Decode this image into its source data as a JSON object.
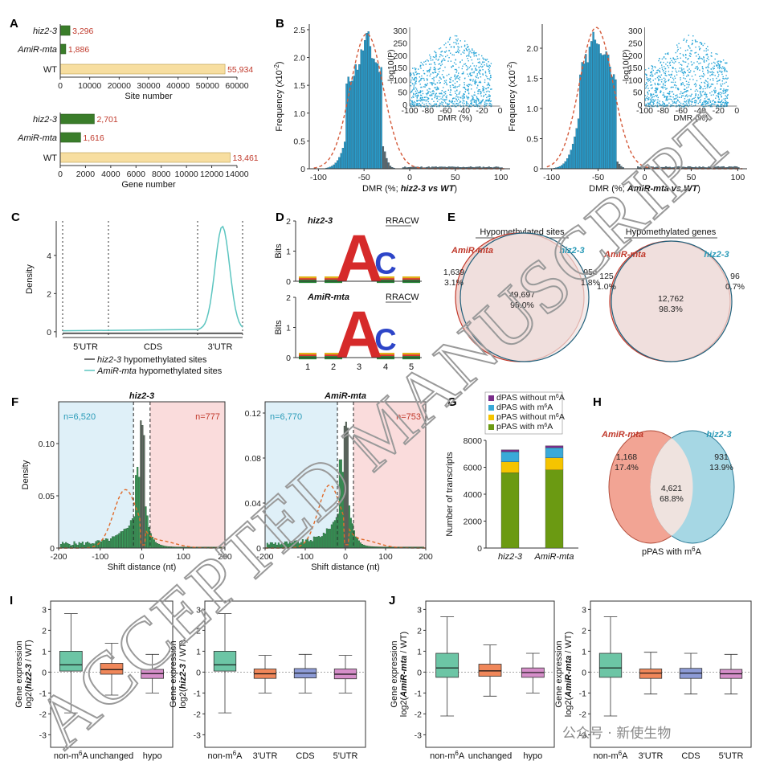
{
  "panels": {
    "A": "A",
    "B": "B",
    "C": "C",
    "D": "D",
    "E": "E",
    "F": "F",
    "G": "G",
    "H": "H",
    "I": "I",
    "J": "J"
  },
  "colors": {
    "green": "#3a7d2a",
    "wt": "#f7dea0",
    "blue": "#2a8fb8",
    "red": "#d45a3a",
    "teal": "#6cc5b0",
    "orange": "#f0875a",
    "lav": "#8d9bd6",
    "pink": "#d58ec9"
  },
  "watermark": {
    "text": "ACCEPTED MANUSCRIPT",
    "source": "公众号 · 新使生物"
  },
  "chart_data": [
    {
      "panel": "A",
      "type": "bar",
      "orientation": "horizontal",
      "categories": [
        "hiz2-3",
        "AmiR-mta",
        "WT"
      ],
      "values": [
        3296,
        1886,
        55934
      ],
      "value_labels": [
        "3,296",
        "1,886",
        "55,934"
      ],
      "xlabel": "Site number",
      "xlim": [
        0,
        60000
      ],
      "xticks": [
        "0",
        "10000",
        "20000",
        "30000",
        "40000",
        "50000",
        "60000"
      ]
    },
    {
      "panel": "A",
      "type": "bar",
      "orientation": "horizontal",
      "categories": [
        "hiz2-3",
        "AmiR-mta",
        "WT"
      ],
      "values": [
        2701,
        1616,
        13461
      ],
      "value_labels": [
        "2,701",
        "1,616",
        "13,461"
      ],
      "xlabel": "Gene number",
      "xlim": [
        0,
        14000
      ],
      "xticks": [
        "0",
        "2000",
        "4000",
        "6000",
        "8000",
        "10000",
        "12000",
        "14000"
      ]
    },
    {
      "panel": "B",
      "type": "bar",
      "subtype": "histogram",
      "xlabel_parts": [
        "DMR (%; ",
        "hiz2-3 vs WT",
        ")"
      ],
      "ylabel": "Frequency (x10",
      "ylabel_sup": "-2",
      "ylabel_end": ")",
      "xlim": [
        -110,
        110
      ],
      "ylim": [
        0,
        2.6
      ],
      "xticks": [
        "-100",
        "-50",
        "0",
        "50",
        "100"
      ],
      "yticks": [
        "0",
        "0.5",
        "1.0",
        "1.5",
        "2.0",
        "2.5"
      ],
      "mode": -47,
      "peak": 2.38,
      "inset": {
        "xlabel": "DMR (%)",
        "ylabel": "-log10(P)",
        "xticks": [
          "-100",
          "-80",
          "-60",
          "-40",
          "-20",
          "0"
        ],
        "yticks": [
          "0",
          "50",
          "100",
          "150",
          "200",
          "250",
          "300"
        ]
      }
    },
    {
      "panel": "B",
      "type": "bar",
      "subtype": "histogram",
      "xlabel_parts": [
        "DMR (%; ",
        "AmiR-mta vs WT",
        ")"
      ],
      "ylabel": "Frequency (x10",
      "ylabel_sup": "-2",
      "ylabel_end": ")",
      "xlim": [
        -110,
        110
      ],
      "ylim": [
        0,
        2.4
      ],
      "xticks": [
        "-100",
        "-50",
        "0",
        "50",
        "100"
      ],
      "yticks": [
        "0",
        "0.5",
        "1.0",
        "1.5",
        "2.0"
      ],
      "mode": -52,
      "peak": 2.3,
      "inset": {
        "xlabel": "DMR (%)",
        "ylabel": "-log10(P)",
        "xticks": [
          "-100",
          "-80",
          "-60",
          "-40",
          "-20",
          "0"
        ],
        "yticks": [
          "0",
          "50",
          "100",
          "150",
          "200",
          "250",
          "300"
        ]
      }
    },
    {
      "panel": "C",
      "type": "line",
      "ylabel": "Density",
      "yticks": [
        "0",
        "2",
        "4"
      ],
      "ylim": [
        -0.3,
        5.8
      ],
      "regions": [
        "5'UTR",
        "CDS",
        "3'UTR"
      ],
      "series": [
        {
          "name_it": "hiz2-3",
          "name_rest": " hypomethylated sites",
          "color": "#444444"
        },
        {
          "name_it": "AmiR-mta",
          "name_rest": " hypomethylated sites",
          "color": "#5cc5c0"
        }
      ],
      "peak": 5.5
    },
    {
      "panel": "D",
      "type": "table",
      "logos": [
        {
          "name": "hiz2-3",
          "motif": "RRACW"
        },
        {
          "name": "AmiR-mta",
          "motif": "RRACW"
        }
      ],
      "ylabel": "Bits",
      "yticks": [
        "0",
        "1",
        "2"
      ],
      "positions": [
        "1",
        "2",
        "3",
        "4",
        "5"
      ]
    },
    {
      "panel": "E",
      "type": "table",
      "venns": [
        {
          "title": "Hypomethylated sites",
          "left": "AmiR-mta",
          "right": "hiz2-3",
          "left_only": "1,639",
          "left_pct": "3.1%",
          "both": "49,697",
          "both_pct": "95.0%",
          "right_only": "954",
          "right_pct": "1.8%"
        },
        {
          "title": "Hypomethylated genes",
          "left": "AmiR-mta",
          "right": "hiz2-3",
          "left_only": "125",
          "left_pct": "1.0%",
          "both": "12,762",
          "both_pct": "98.3%",
          "right_only": "96",
          "right_pct": "0.7%"
        }
      ]
    },
    {
      "panel": "F",
      "type": "bar",
      "subtype": "histogram",
      "title": "hiz2-3",
      "xlabel": "Shift distance (nt)",
      "ylabel": "Density",
      "xlim": [
        -200,
        200
      ],
      "ylim": [
        0,
        0.14
      ],
      "xticks": [
        "-200",
        "-100",
        "0",
        "100",
        "200"
      ],
      "yticks": [
        "0",
        "0.05",
        "0.10"
      ],
      "n_left": "n=6,520",
      "n_right": "n=777"
    },
    {
      "panel": "F",
      "type": "bar",
      "subtype": "histogram",
      "title": "AmiR-mta",
      "xlabel": "Shift distance (nt)",
      "ylabel": "",
      "xlim": [
        -200,
        200
      ],
      "ylim": [
        0,
        0.13
      ],
      "xticks": [
        "-200",
        "-100",
        "0",
        "100",
        "200"
      ],
      "yticks": [
        "0",
        "0.04",
        "0.08",
        "0.12"
      ],
      "n_left": "n=6,770",
      "n_right": "n=753"
    },
    {
      "panel": "G",
      "type": "bar",
      "stacked": true,
      "categories": [
        "hiz2-3",
        "AmiR-mta"
      ],
      "ylabel": "Number of transcripts",
      "ylim": [
        0,
        8000
      ],
      "yticks": [
        "0",
        "2000",
        "4000",
        "6000",
        "8000"
      ],
      "series": [
        {
          "name": "pPAS with m",
          "sup": "6",
          "end": "A",
          "color": "#6b9a12",
          "values": [
            5600,
            5800
          ]
        },
        {
          "name": "pPAS without m",
          "sup": "6",
          "end": "A",
          "color": "#f5c400",
          "values": [
            800,
            900
          ]
        },
        {
          "name": "dPAS with m",
          "sup": "6",
          "end": "A",
          "color": "#3aa9d8",
          "values": [
            750,
            750
          ]
        },
        {
          "name": "dPAS without m",
          "sup": "6",
          "end": "A",
          "color": "#7a2d8a",
          "values": [
            150,
            150
          ]
        }
      ]
    },
    {
      "panel": "H",
      "type": "table",
      "left": "AmiR-mta",
      "right": "hiz2-3",
      "left_only": "1,168",
      "left_pct": "17.4%",
      "both": "4,621",
      "both_pct": "68.8%",
      "right_only": "931",
      "right_pct": "13.9%",
      "caption": "pPAS with m",
      "caption_sup": "6",
      "caption_end": "A"
    },
    {
      "panel": "I",
      "type": "table",
      "subtype": "boxplot",
      "ylabel_1": "Gene expression",
      "ylabel_2": "log2(",
      "ylabel_it": "hiz2-3",
      "ylabel_3": " / WT)",
      "ylim": [
        -3.6,
        3.4
      ],
      "yticks": [
        "-3",
        "-2",
        "-1",
        "0",
        "1",
        "2",
        "3"
      ],
      "groups": [
        {
          "label": "non-m",
          "sup": "6",
          "end": "A",
          "q1": 0.05,
          "med": 0.35,
          "q3": 1.0,
          "lo": -1.95,
          "hi": 2.8,
          "color": "#6cc5a5"
        },
        {
          "label": "unchanged",
          "sup": "",
          "end": "",
          "q1": -0.1,
          "med": 0.12,
          "q3": 0.42,
          "lo": -1.1,
          "hi": 1.38,
          "color": "#f0875a"
        },
        {
          "label": "hypo",
          "sup": "",
          "end": "",
          "q1": -0.3,
          "med": -0.07,
          "q3": 0.13,
          "lo": -1.0,
          "hi": 0.85,
          "color": "#d58ec9"
        }
      ]
    },
    {
      "panel": "I",
      "type": "table",
      "subtype": "boxplot",
      "ylabel_1": "Gene expression",
      "ylabel_2": "log2(",
      "ylabel_it": "hiz2-3",
      "ylabel_3": " / WT)",
      "ylim": [
        -3.6,
        3.4
      ],
      "yticks": [
        "-3",
        "-2",
        "-1",
        "0",
        "1",
        "2",
        "3"
      ],
      "groups": [
        {
          "label": "non-m",
          "sup": "6",
          "end": "A",
          "q1": 0.05,
          "med": 0.35,
          "q3": 1.0,
          "lo": -1.95,
          "hi": 2.8,
          "color": "#6cc5a5"
        },
        {
          "label": "3'UTR",
          "sup": "",
          "end": "",
          "q1": -0.3,
          "med": -0.08,
          "q3": 0.15,
          "lo": -1.0,
          "hi": 0.8,
          "color": "#f0875a"
        },
        {
          "label": "CDS",
          "sup": "",
          "end": "",
          "q1": -0.28,
          "med": -0.05,
          "q3": 0.17,
          "lo": -1.0,
          "hi": 0.85,
          "color": "#8d9bd6"
        },
        {
          "label": "5'UTR",
          "sup": "",
          "end": "",
          "q1": -0.32,
          "med": -0.1,
          "q3": 0.15,
          "lo": -1.0,
          "hi": 0.8,
          "color": "#d58ec9"
        }
      ]
    },
    {
      "panel": "J",
      "type": "table",
      "subtype": "boxplot",
      "ylabel_1": "Gene expression",
      "ylabel_2": "log2(",
      "ylabel_it": "AmiR-mta",
      "ylabel_3": " / WT)",
      "ylim": [
        -3.6,
        3.4
      ],
      "yticks": [
        "-3",
        "-2",
        "-1",
        "0",
        "1",
        "2",
        "3"
      ],
      "groups": [
        {
          "label": "non-m",
          "sup": "6",
          "end": "A",
          "q1": -0.25,
          "med": 0.2,
          "q3": 0.9,
          "lo": -2.1,
          "hi": 2.65,
          "color": "#6cc5a5"
        },
        {
          "label": "unchanged",
          "sup": "",
          "end": "",
          "q1": -0.2,
          "med": 0.06,
          "q3": 0.38,
          "lo": -1.15,
          "hi": 1.3,
          "color": "#f0875a"
        },
        {
          "label": "hypo",
          "sup": "",
          "end": "",
          "q1": -0.25,
          "med": -0.02,
          "q3": 0.2,
          "lo": -1.0,
          "hi": 0.9,
          "color": "#d58ec9"
        }
      ]
    },
    {
      "panel": "J",
      "type": "table",
      "subtype": "boxplot",
      "ylabel_1": "Gene expression",
      "ylabel_2": "log2(",
      "ylabel_it": "AmiR-mta",
      "ylabel_3": " / WT)",
      "ylim": [
        -3.6,
        3.4
      ],
      "yticks": [
        "-3",
        "-2",
        "-1",
        "0",
        "1",
        "2",
        "3"
      ],
      "groups": [
        {
          "label": "non-m",
          "sup": "6",
          "end": "A",
          "q1": -0.25,
          "med": 0.2,
          "q3": 0.9,
          "lo": -2.1,
          "hi": 2.65,
          "color": "#6cc5a5"
        },
        {
          "label": "3'UTR",
          "sup": "",
          "end": "",
          "q1": -0.3,
          "med": -0.05,
          "q3": 0.15,
          "lo": -1.05,
          "hi": 0.95,
          "color": "#f0875a"
        },
        {
          "label": "CDS",
          "sup": "",
          "end": "",
          "q1": -0.3,
          "med": -0.05,
          "q3": 0.18,
          "lo": -1.05,
          "hi": 0.9,
          "color": "#8d9bd6"
        },
        {
          "label": "5'UTR",
          "sup": "",
          "end": "",
          "q1": -0.3,
          "med": -0.08,
          "q3": 0.13,
          "lo": -1.05,
          "hi": 0.85,
          "color": "#d58ec9"
        }
      ]
    }
  ]
}
